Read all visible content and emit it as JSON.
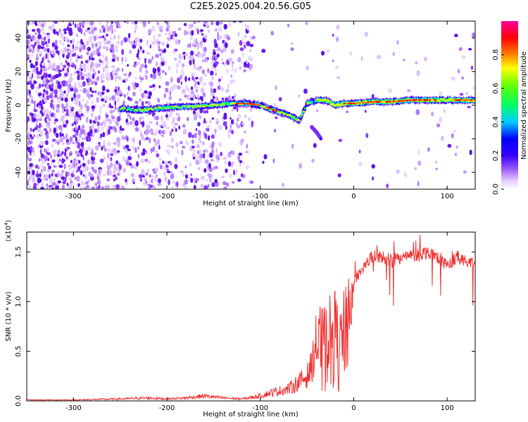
{
  "title": "C2E5.2025.004.20.56.G05",
  "chart_data": [
    {
      "type": "heatmap",
      "xlabel": "Height of straight line (km)",
      "ylabel": "Frequency (Hz)",
      "xlim": [
        -350,
        130
      ],
      "ylim": [
        -50,
        50
      ],
      "xticks": [
        -300,
        -200,
        -100,
        0,
        100
      ],
      "yticks": [
        -40,
        -20,
        0,
        20,
        40
      ],
      "colorbar": {
        "label": "Normalized spectral amplitude",
        "range": [
          0,
          1
        ],
        "ticks": [
          "0.0",
          "0.2",
          "0.4",
          "0.6",
          "0.8"
        ],
        "colors": [
          "#ffffff",
          "#e6ccff",
          "#9b59ff",
          "#3300ff",
          "#0000ff",
          "#00ccff",
          "#00ff66",
          "#66ff00",
          "#ffff00",
          "#ff6600",
          "#ff0000",
          "#ff0099"
        ]
      },
      "ridge": {
        "x": [
          -250,
          -230,
          -210,
          -190,
          -170,
          -150,
          -130,
          -115,
          -100,
          -85,
          -70,
          -58,
          -50,
          -40,
          -30,
          -20,
          -10,
          0,
          20,
          40,
          60,
          80,
          100,
          120,
          130
        ],
        "y": [
          -2,
          -3,
          -2,
          -1,
          -1,
          0,
          1,
          1,
          0,
          -3,
          -6,
          -9,
          1,
          3,
          3,
          0,
          1,
          1,
          2,
          2,
          3,
          3,
          3,
          3,
          3
        ]
      },
      "branch": {
        "x": [
          -45,
          -40,
          -35
        ],
        "y": [
          -13,
          -16,
          -20
        ]
      }
    },
    {
      "type": "line",
      "xlabel": "Height of straight line (km)",
      "ylabel": "SNR (10 * v/v)",
      "yscale_label": "(x10",
      "yscale_exp": "4",
      "xlim": [
        -350,
        130
      ],
      "ylim": [
        0,
        1.7
      ],
      "xticks": [
        -300,
        -200,
        -100,
        0,
        100
      ],
      "yticks": [
        "0.0",
        "0.5",
        "1.0",
        "1.5"
      ],
      "ytick_values": [
        0,
        0.5,
        1.0,
        1.5
      ],
      "series": [
        {
          "color": "#ee3333",
          "x": [
            -350,
            -300,
            -250,
            -220,
            -200,
            -180,
            -160,
            -140,
            -120,
            -100,
            -90,
            -80,
            -70,
            -60,
            -50,
            -45,
            -40,
            -35,
            -30,
            -25,
            -20,
            -15,
            -10,
            -5,
            0,
            10,
            20,
            30,
            40,
            50,
            60,
            70,
            80,
            90,
            100,
            110,
            120,
            130
          ],
          "y": [
            0.01,
            0.01,
            0.02,
            0.03,
            0.02,
            0.03,
            0.05,
            0.03,
            0.02,
            0.05,
            0.08,
            0.1,
            0.12,
            0.18,
            0.25,
            0.35,
            0.6,
            0.85,
            0.8,
            0.9,
            0.95,
            0.75,
            0.95,
            1.05,
            1.2,
            1.35,
            1.45,
            1.45,
            1.42,
            1.45,
            1.45,
            1.48,
            1.5,
            1.45,
            1.35,
            1.45,
            1.4,
            1.4
          ]
        }
      ]
    }
  ]
}
